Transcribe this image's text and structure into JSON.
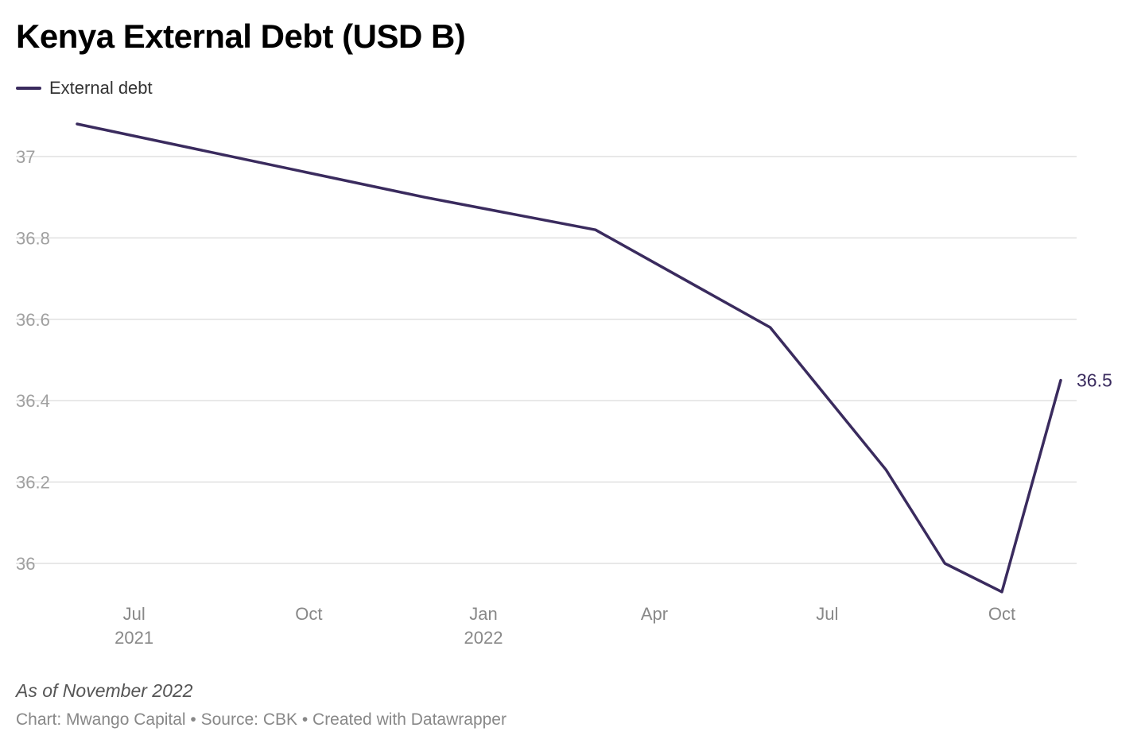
{
  "title": "Kenya External Debt (USD B)",
  "legend": {
    "label": "External debt"
  },
  "colors": {
    "line": "#3a2b5e",
    "grid": "#e0e0e0",
    "tick": "#a0a0a0",
    "xtick": "#888888",
    "label": "#3a2b5e"
  },
  "note": "As of November 2022",
  "credits": "Chart: Mwango Capital • Source: CBK • Created with Datawrapper",
  "chart_data": {
    "type": "line",
    "title": "Kenya External Debt (USD B)",
    "xlabel": "",
    "ylabel": "",
    "ylim": [
      35.93,
      37.08
    ],
    "grid": true,
    "legend_position": "top-left",
    "y_ticks": [
      {
        "value": 36,
        "label": "36"
      },
      {
        "value": 36.2,
        "label": "36.2"
      },
      {
        "value": 36.4,
        "label": "36.4"
      },
      {
        "value": 36.6,
        "label": "36.6"
      },
      {
        "value": 36.8,
        "label": "36.8"
      },
      {
        "value": 37,
        "label": "37"
      }
    ],
    "x_ticks": [
      {
        "date": "2021-07-01",
        "label": "Jul",
        "sublabel": "2021"
      },
      {
        "date": "2021-10-01",
        "label": "Oct",
        "sublabel": ""
      },
      {
        "date": "2022-01-01",
        "label": "Jan",
        "sublabel": "2022"
      },
      {
        "date": "2022-04-01",
        "label": "Apr",
        "sublabel": ""
      },
      {
        "date": "2022-07-01",
        "label": "Jul",
        "sublabel": ""
      },
      {
        "date": "2022-10-01",
        "label": "Oct",
        "sublabel": ""
      }
    ],
    "series": [
      {
        "name": "External debt",
        "points": [
          {
            "x": "2021-06-01",
            "y": 37.08
          },
          {
            "x": "2021-12-01",
            "y": 36.9
          },
          {
            "x": "2022-03-01",
            "y": 36.82
          },
          {
            "x": "2022-06-01",
            "y": 36.58
          },
          {
            "x": "2022-08-01",
            "y": 36.23
          },
          {
            "x": "2022-09-01",
            "y": 36.0
          },
          {
            "x": "2022-10-01",
            "y": 35.93
          },
          {
            "x": "2022-11-01",
            "y": 36.45
          }
        ],
        "end_label": "36.5"
      }
    ]
  }
}
